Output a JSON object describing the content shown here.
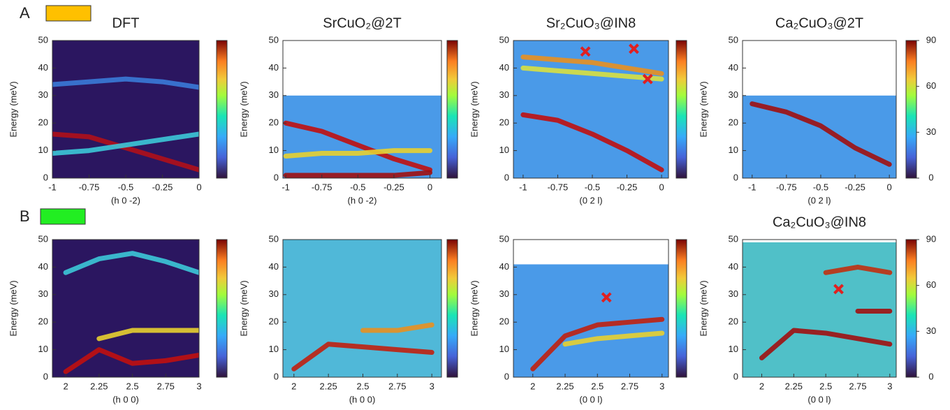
{
  "labels": [
    "A",
    "B"
  ],
  "chart_data": [
    {
      "type": "line",
      "title": "DFT",
      "xlabel": "(h 0 -2)",
      "ylabel": "Energy (meV)",
      "background": "#2b1660",
      "xlim": [
        -1,
        0
      ],
      "ylim": [
        0,
        50
      ],
      "xticks": [
        -1,
        -0.75,
        -0.5,
        -0.25,
        0
      ],
      "yticks": [
        0,
        10,
        20,
        30,
        40,
        50
      ],
      "x": [
        -1,
        -0.75,
        -0.5,
        -0.25,
        0
      ],
      "series": [
        {
          "color": "#b0101a",
          "values": [
            16,
            15,
            11,
            7,
            3
          ]
        },
        {
          "color": "#3cc8d8",
          "values": [
            9,
            10,
            12,
            14,
            16
          ]
        },
        {
          "color": "#3a7ad8",
          "values": [
            34,
            35,
            36,
            35,
            33
          ]
        }
      ]
    },
    {
      "type": "line",
      "title": "SrCuO₂@2T",
      "xlabel": "(h 0 -2)",
      "ylabel": "Energy (meV)",
      "background": "#4a9ae8",
      "emax": 30,
      "xlim": [
        -1.02,
        0.08
      ],
      "ylim": [
        0,
        50
      ],
      "xticks": [
        -1,
        -0.75,
        -0.5,
        -0.25,
        0
      ],
      "yticks": [
        0,
        10,
        20,
        30,
        40,
        50
      ],
      "x": [
        -1,
        -0.75,
        -0.5,
        -0.25,
        0
      ],
      "series": [
        {
          "color": "#c01010",
          "values": [
            20,
            17,
            12,
            7,
            3
          ]
        },
        {
          "color": "#e8d030",
          "values": [
            8,
            9,
            9,
            10,
            10
          ]
        },
        {
          "color": "#a01010",
          "values": [
            1,
            1,
            1,
            1,
            2
          ]
        }
      ]
    },
    {
      "type": "line",
      "title": "Sr₂CuO₃@IN8",
      "xlabel": "(0 2 l)",
      "ylabel": "Energy (meV)",
      "background": "#4a9ae8",
      "emax": 50,
      "xlim": [
        -1.07,
        0.05
      ],
      "ylim": [
        0,
        50
      ],
      "xticks": [
        -1,
        -0.75,
        -0.5,
        -0.25,
        0
      ],
      "yticks": [
        0,
        10,
        20,
        30,
        40,
        50
      ],
      "x": [
        -1,
        -0.75,
        -0.5,
        -0.25,
        0
      ],
      "series": [
        {
          "color": "#c01010",
          "values": [
            23,
            21,
            16,
            10,
            3
          ]
        },
        {
          "color": "#e89020",
          "values": [
            44,
            43,
            42,
            40,
            38
          ]
        },
        {
          "color": "#d8e040",
          "values": [
            40,
            39,
            38,
            37,
            36
          ]
        }
      ],
      "markers": {
        "x": [
          -0.55,
          -0.2,
          -0.1
        ],
        "y": [
          46,
          47,
          36
        ]
      }
    },
    {
      "type": "line",
      "title": "Ca₂CuO₃@2T",
      "xlabel": "(0 2 l)",
      "ylabel": "Energy (meV)",
      "background": "#4a9ae8",
      "emax": 30,
      "xlim": [
        -1.07,
        0.05
      ],
      "ylim": [
        0,
        50
      ],
      "xticks": [
        -1,
        -0.75,
        -0.5,
        -0.25,
        0
      ],
      "yticks": [
        0,
        10,
        20,
        30,
        40,
        50
      ],
      "cticks": [
        0,
        30,
        60,
        90
      ],
      "clim": [
        0,
        90
      ],
      "x": [
        -1,
        -0.75,
        -0.5,
        -0.25,
        0
      ],
      "series": [
        {
          "color": "#a01010",
          "values": [
            27,
            24,
            19,
            11,
            5
          ]
        }
      ]
    },
    {
      "type": "line",
      "xlabel": "(h 0 0)",
      "ylabel": "Energy (meV)",
      "background": "#2b1660",
      "xlim": [
        1.9,
        3
      ],
      "ylim": [
        0,
        50
      ],
      "xticks": [
        2,
        2.25,
        2.5,
        2.75,
        3
      ],
      "yticks": [
        0,
        10,
        20,
        30,
        40,
        50
      ],
      "x": [
        2,
        2.25,
        2.5,
        2.75,
        3
      ],
      "series": [
        {
          "color": "#c01010",
          "values": [
            2,
            10,
            5,
            6,
            8
          ]
        },
        {
          "color": "#e8d030",
          "values": [
            null,
            14,
            17,
            17,
            17
          ]
        },
        {
          "color": "#3cc8d8",
          "values": [
            38,
            43,
            45,
            42,
            38
          ]
        }
      ]
    },
    {
      "type": "line",
      "xlabel": "(h 0 0)",
      "ylabel": "Energy (meV)",
      "background": "#50b8d8",
      "emax": 50,
      "xlim": [
        1.92,
        3.07
      ],
      "ylim": [
        0,
        50
      ],
      "xticks": [
        2,
        2.25,
        2.5,
        2.75,
        3
      ],
      "yticks": [
        0,
        10,
        20,
        30,
        40,
        50
      ],
      "x": [
        2,
        2.25,
        2.5,
        2.75,
        3
      ],
      "series": [
        {
          "color": "#c02010",
          "values": [
            3,
            12,
            11,
            10,
            9
          ]
        },
        {
          "color": "#e89020",
          "values": [
            null,
            null,
            17,
            17,
            19
          ]
        }
      ]
    },
    {
      "type": "line",
      "xlabel": "(0 0 l)",
      "ylabel": "Energy (meV)",
      "background": "#4a9ae8",
      "emax": 41,
      "xlim": [
        1.85,
        3.05
      ],
      "ylim": [
        0,
        50
      ],
      "xticks": [
        2,
        2.25,
        2.5,
        2.75,
        3
      ],
      "yticks": [
        0,
        10,
        20,
        30,
        40,
        50
      ],
      "x": [
        2,
        2.25,
        2.5,
        2.75,
        3
      ],
      "series": [
        {
          "color": "#c02010",
          "values": [
            3,
            15,
            19,
            20,
            21
          ]
        },
        {
          "color": "#e8d030",
          "values": [
            null,
            12,
            14,
            15,
            16
          ]
        }
      ],
      "markers": {
        "x": [
          2.57
        ],
        "y": [
          29
        ]
      }
    },
    {
      "type": "line",
      "title": "Ca₂CuO₃@IN8",
      "xlabel": "(0 0 l)",
      "ylabel": "Energy (meV)",
      "background": "#50c0c8",
      "emax": 49,
      "xlim": [
        1.85,
        3.05
      ],
      "ylim": [
        0,
        50
      ],
      "xticks": [
        2,
        2.25,
        2.5,
        2.75,
        3
      ],
      "yticks": [
        0,
        10,
        20,
        30,
        40,
        50
      ],
      "cticks": [
        0,
        30,
        60,
        90
      ],
      "clim": [
        0,
        90
      ],
      "x": [
        2,
        2.25,
        2.5,
        2.75,
        3
      ],
      "series": [
        {
          "color": "#a01010",
          "values": [
            7,
            17,
            16,
            14,
            12
          ]
        },
        {
          "color": "#c03010",
          "values": [
            null,
            null,
            38,
            40,
            38
          ]
        },
        {
          "color": "#a01010",
          "values": [
            null,
            null,
            null,
            24,
            24
          ]
        }
      ],
      "markers": {
        "x": [
          2.6
        ],
        "y": [
          32
        ]
      }
    }
  ]
}
